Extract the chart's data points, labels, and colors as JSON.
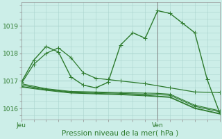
{
  "bg_color": "#cceee8",
  "grid_color": "#aad4ce",
  "line_color": "#2d7a2d",
  "marker_color": "#2d7a2d",
  "xlabel": "Pression niveau de la mer( hPa )",
  "xlabel_fontsize": 7.5,
  "yticks": [
    1016,
    1017,
    1018,
    1019
  ],
  "ylim": [
    1015.6,
    1019.85
  ],
  "xlim": [
    0,
    48
  ],
  "xtick_labels": [
    "Jeu",
    "Ven"
  ],
  "xtick_positions": [
    0,
    33
  ],
  "vline_x": 33,
  "series": [
    {
      "x": [
        0,
        3,
        6,
        9,
        12,
        15,
        18,
        21,
        24,
        27,
        30,
        33,
        36,
        39,
        42,
        45,
        48
      ],
      "y": [
        1016.95,
        1017.75,
        1018.25,
        1018.05,
        1017.15,
        1016.85,
        1016.75,
        1016.95,
        1018.3,
        1018.75,
        1018.55,
        1019.55,
        1019.45,
        1019.1,
        1018.75,
        1017.05,
        1015.85
      ],
      "marker": "+",
      "lw": 1.0,
      "ms": 4
    },
    {
      "x": [
        0,
        6,
        12,
        18,
        24,
        30,
        33,
        36,
        42,
        48
      ],
      "y": [
        1016.9,
        1016.72,
        1016.62,
        1016.6,
        1016.58,
        1016.56,
        1016.55,
        1016.52,
        1016.12,
        1015.92
      ],
      "marker": "+",
      "lw": 0.8,
      "ms": 3
    },
    {
      "x": [
        0,
        6,
        12,
        18,
        24,
        30,
        33,
        36,
        42,
        48
      ],
      "y": [
        1016.85,
        1016.7,
        1016.6,
        1016.58,
        1016.55,
        1016.52,
        1016.5,
        1016.48,
        1016.08,
        1015.88
      ],
      "marker": "+",
      "lw": 0.8,
      "ms": 3
    },
    {
      "x": [
        0,
        6,
        12,
        18,
        24,
        30,
        33,
        36,
        42,
        48
      ],
      "y": [
        1016.8,
        1016.68,
        1016.58,
        1016.55,
        1016.52,
        1016.48,
        1016.45,
        1016.42,
        1016.02,
        1015.82
      ],
      "marker": "+",
      "lw": 0.8,
      "ms": 3
    },
    {
      "x": [
        0,
        6,
        12,
        18,
        24,
        30,
        33,
        36,
        42,
        48
      ],
      "y": [
        1016.78,
        1016.66,
        1016.56,
        1016.53,
        1016.5,
        1016.46,
        1016.43,
        1016.4,
        1016.0,
        1015.8
      ],
      "marker": null,
      "lw": 0.8,
      "ms": 0
    },
    {
      "x": [
        0,
        3,
        6,
        9,
        12,
        15,
        18,
        21,
        24,
        30,
        36,
        42,
        48
      ],
      "y": [
        1016.9,
        1017.6,
        1018.0,
        1018.2,
        1017.85,
        1017.3,
        1017.1,
        1017.05,
        1017.0,
        1016.9,
        1016.75,
        1016.6,
        1016.58
      ],
      "marker": "+",
      "lw": 0.9,
      "ms": 4
    }
  ]
}
